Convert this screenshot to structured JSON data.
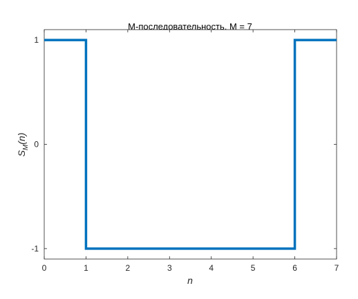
{
  "chart_data": {
    "type": "line",
    "style": "step",
    "title": "M-последовательность, M = 7",
    "xlabel": "n",
    "ylabel": {
      "main": "S",
      "subscript": "M",
      "suffix": "(n)"
    },
    "xlim": [
      0,
      7
    ],
    "ylim": [
      -1.1,
      1.1
    ],
    "xticks": [
      0,
      1,
      2,
      3,
      4,
      5,
      6,
      7
    ],
    "xtick_labels": [
      "0",
      "1",
      "2",
      "3",
      "4",
      "5",
      "6",
      "7"
    ],
    "yticks": [
      -1,
      0,
      1
    ],
    "ytick_labels": [
      "-1",
      "0",
      "1"
    ],
    "grid": false,
    "series": [
      {
        "color": "#0072BD",
        "points": [
          [
            0,
            1
          ],
          [
            1,
            1
          ],
          [
            1,
            -1
          ],
          [
            6,
            -1
          ],
          [
            6,
            1
          ],
          [
            7,
            1
          ]
        ]
      }
    ]
  }
}
